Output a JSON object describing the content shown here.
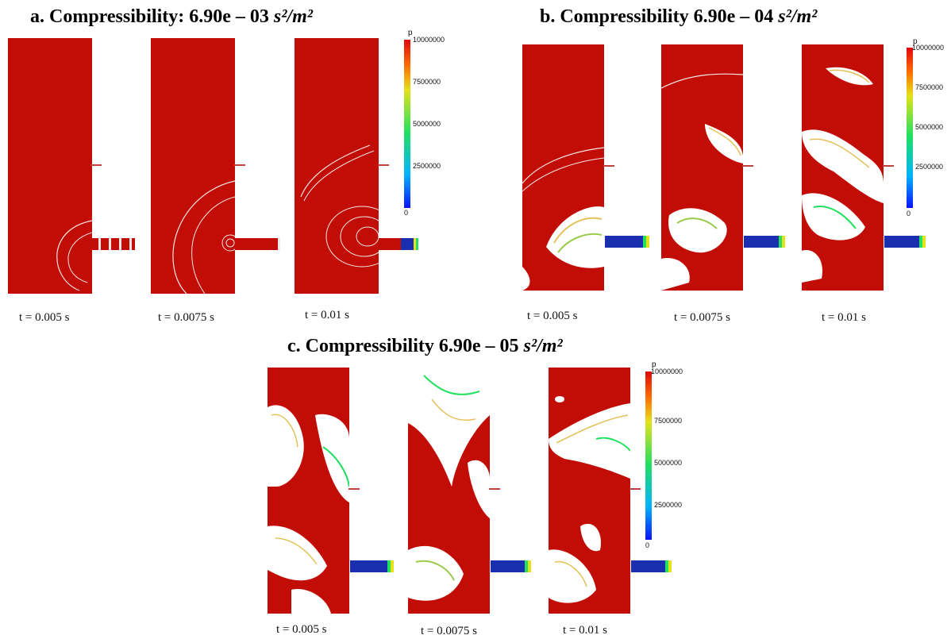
{
  "titles": {
    "a": {
      "prefix": "a. Compressibility: 6.90e – 03 ",
      "unit": "s²/m²"
    },
    "b": {
      "prefix": "b. Compressibility 6.90e – 04 ",
      "unit": "s²/m²"
    },
    "c": {
      "prefix": "c. Compressibility 6.90e – 05 ",
      "unit": "s²/m²"
    }
  },
  "time_labels": [
    "t = 0.005 s",
    "t = 0.0075 s",
    "t = 0.01 s"
  ],
  "colorbar": {
    "label": "p",
    "ticks": [
      "10000000",
      "7500000",
      "5000000",
      "2500000",
      "0"
    ],
    "colors": {
      "max": "#e0060a",
      "high": "#ff6b00",
      "mid": "#22e060",
      "low": "#00b4ff",
      "min": "#0a13ff"
    }
  },
  "colors": {
    "field": "#c20d06",
    "contour": "#f3e6e6",
    "nozzle": "#1a2fb0"
  }
}
